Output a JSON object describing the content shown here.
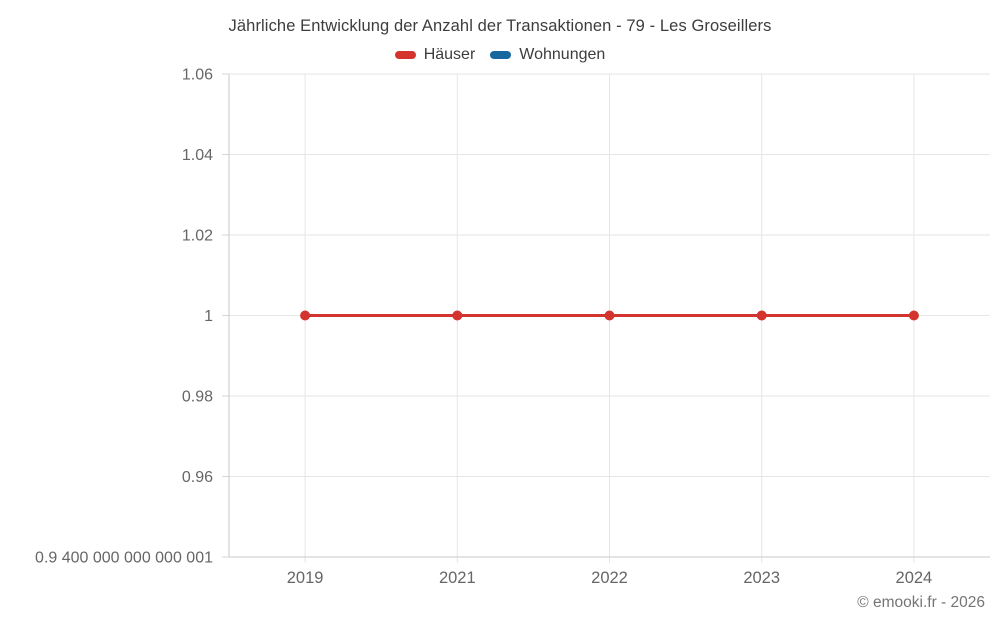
{
  "page": {
    "title": "Jährliche Entwicklung der Anzahl der Transaktionen - 79 - Les Groseillers",
    "footer": "© emooki.fr - 2026"
  },
  "colors": {
    "haeuser": "#d3342e",
    "wohnungen": "#17689e",
    "gridline": "#e6e6e6",
    "axis_line": "#c9c9c9",
    "tick_mark": "#d6d6d6",
    "tick_label": "#666666",
    "title_text": "#3d3d3d",
    "footer_text": "#757575"
  },
  "chart_data": {
    "type": "line",
    "title": "Jährliche Entwicklung der Anzahl der Transaktionen - 79 - Les Groseillers",
    "categories": [
      "2019",
      "2021",
      "2022",
      "2023",
      "2024"
    ],
    "series": [
      {
        "name": "Häuser",
        "color": "#d3342e",
        "values": [
          1,
          1,
          1,
          1,
          1
        ]
      },
      {
        "name": "Wohnungen",
        "color": "#17689e",
        "values": []
      }
    ],
    "xlabel": "",
    "ylabel": "",
    "ylim": [
      0.94,
      1.06
    ],
    "yticks": [
      0.94,
      0.96,
      0.98,
      1,
      1.02,
      1.04,
      1.06
    ],
    "ytick_labels": [
      "0.9 400 000 000 000 001",
      "0.96",
      "0.98",
      "1",
      "1.02",
      "1.04",
      "1.06"
    ],
    "grid": true,
    "legend_position": "top",
    "marker": "circle"
  }
}
